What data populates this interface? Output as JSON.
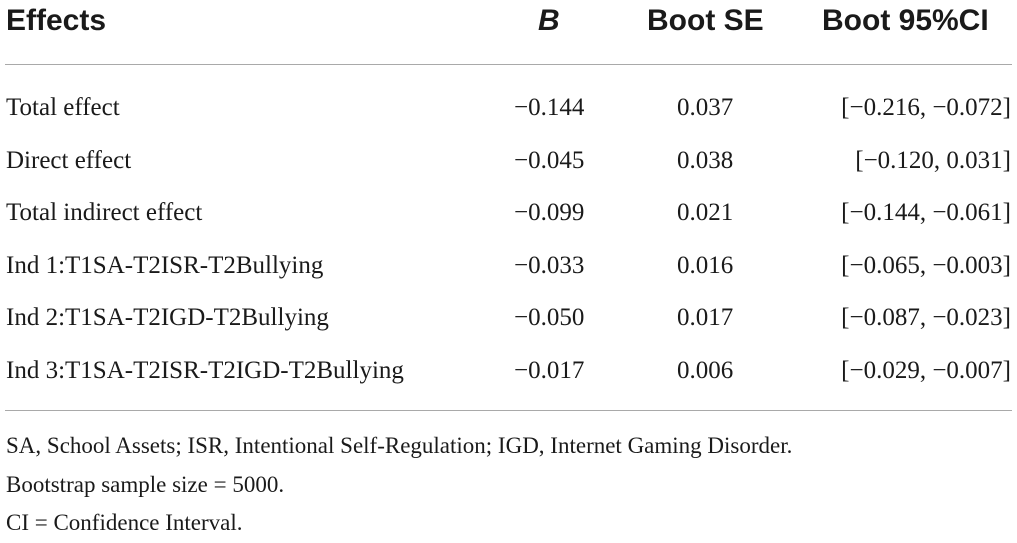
{
  "table": {
    "headers": {
      "effects": "Effects",
      "b": "B",
      "boot_se": "Boot SE",
      "boot_ci": "Boot 95%CI"
    },
    "rows": [
      {
        "effect": "Total effect",
        "b": "−0.144",
        "se": "0.037",
        "ci": "[−0.216, −0.072]"
      },
      {
        "effect": "Direct effect",
        "b": "−0.045",
        "se": "0.038",
        "ci": "[−0.120, 0.031]"
      },
      {
        "effect": "Total indirect effect",
        "b": "−0.099",
        "se": "0.021",
        "ci": "[−0.144, −0.061]"
      },
      {
        "effect": "Ind 1:T1SA-T2ISR-T2Bullying",
        "b": "−0.033",
        "se": "0.016",
        "ci": "[−0.065, −0.003]"
      },
      {
        "effect": "Ind 2:T1SA-T2IGD-T2Bullying",
        "b": "−0.050",
        "se": "0.017",
        "ci": "[−0.087, −0.023]"
      },
      {
        "effect": "Ind 3:T1SA-T2ISR-T2IGD-T2Bullying",
        "b": "−0.017",
        "se": "0.006",
        "ci": "[−0.029, −0.007]"
      }
    ]
  },
  "notes": [
    "SA, School Assets; ISR, Intentional Self-Regulation; IGD, Internet Gaming Disorder.",
    "Bootstrap sample size = 5000.",
    "CI = Confidence Interval."
  ]
}
